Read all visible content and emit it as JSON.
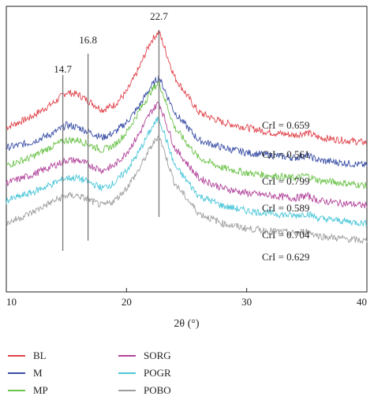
{
  "chart_data": {
    "type": "line",
    "xlabel": "2θ (°)",
    "x_ticks": [
      10,
      20,
      30,
      40
    ],
    "xlim": [
      10,
      40
    ],
    "grid": false,
    "legend_placement": "bottom",
    "peak_markers": [
      {
        "x": 14.7,
        "label": "14.7"
      },
      {
        "x": 16.8,
        "label": "16.8"
      },
      {
        "x": 22.7,
        "label": "22.7"
      }
    ],
    "series": [
      {
        "name": "BL",
        "color": "#e0434b",
        "annotation": "CrI = 0.659",
        "x": [
          10,
          12,
          14,
          15,
          16,
          17,
          18,
          19,
          20,
          21,
          22,
          22.7,
          24,
          26,
          28,
          30,
          32,
          34,
          35,
          36,
          38,
          40
        ],
        "y": [
          0.62,
          0.66,
          0.72,
          0.76,
          0.75,
          0.72,
          0.69,
          0.71,
          0.76,
          0.85,
          0.96,
          1.0,
          0.82,
          0.68,
          0.64,
          0.62,
          0.6,
          0.59,
          0.6,
          0.58,
          0.57,
          0.56
        ]
      },
      {
        "name": "M",
        "color": "#3a4fa5",
        "annotation": "CrI = 0.561",
        "x": [
          10,
          12,
          14,
          15,
          16,
          17,
          18,
          19,
          20,
          21,
          22,
          22.7,
          24,
          26,
          28,
          30,
          32,
          34,
          35,
          36,
          38,
          40
        ],
        "y": [
          0.54,
          0.56,
          0.6,
          0.63,
          0.62,
          0.6,
          0.58,
          0.6,
          0.64,
          0.7,
          0.78,
          0.82,
          0.68,
          0.57,
          0.54,
          0.52,
          0.51,
          0.5,
          0.51,
          0.49,
          0.48,
          0.47
        ]
      },
      {
        "name": "MP",
        "color": "#6cc24a",
        "annotation": "CrI = 0.799",
        "x": [
          10,
          12,
          14,
          15,
          16,
          17,
          18,
          19,
          20,
          21,
          22,
          22.7,
          24,
          26,
          28,
          30,
          32,
          34,
          35,
          36,
          38,
          40
        ],
        "y": [
          0.47,
          0.5,
          0.55,
          0.57,
          0.57,
          0.55,
          0.53,
          0.55,
          0.6,
          0.68,
          0.76,
          0.8,
          0.62,
          0.5,
          0.46,
          0.44,
          0.43,
          0.42,
          0.43,
          0.41,
          0.4,
          0.39
        ]
      },
      {
        "name": "SORG",
        "color": "#b2459b",
        "annotation": "CrI = 0.589",
        "x": [
          10,
          12,
          14,
          15,
          16,
          17,
          18,
          19,
          20,
          21,
          22,
          22.7,
          24,
          26,
          28,
          30,
          32,
          34,
          35,
          36,
          38,
          40
        ],
        "y": [
          0.4,
          0.43,
          0.47,
          0.49,
          0.49,
          0.47,
          0.45,
          0.47,
          0.52,
          0.59,
          0.68,
          0.72,
          0.54,
          0.42,
          0.38,
          0.36,
          0.35,
          0.34,
          0.35,
          0.33,
          0.32,
          0.31
        ]
      },
      {
        "name": "POGR",
        "color": "#4bc6d8",
        "annotation": "CrI = 0.704",
        "x": [
          10,
          12,
          14,
          15,
          16,
          17,
          18,
          19,
          20,
          21,
          22,
          22.7,
          24,
          26,
          28,
          30,
          32,
          34,
          35,
          36,
          38,
          40
        ],
        "y": [
          0.33,
          0.36,
          0.4,
          0.42,
          0.42,
          0.4,
          0.38,
          0.4,
          0.45,
          0.52,
          0.61,
          0.66,
          0.47,
          0.35,
          0.31,
          0.29,
          0.28,
          0.27,
          0.28,
          0.26,
          0.25,
          0.24
        ]
      },
      {
        "name": "POBO",
        "color": "#9e9e9e",
        "annotation": "CrI = 0.629",
        "x": [
          10,
          12,
          14,
          15,
          16,
          17,
          18,
          19,
          20,
          21,
          22,
          22.7,
          24,
          26,
          28,
          30,
          32,
          34,
          35,
          36,
          38,
          40
        ],
        "y": [
          0.24,
          0.28,
          0.33,
          0.35,
          0.35,
          0.33,
          0.31,
          0.33,
          0.38,
          0.45,
          0.54,
          0.59,
          0.4,
          0.28,
          0.24,
          0.22,
          0.21,
          0.2,
          0.21,
          0.19,
          0.18,
          0.17
        ]
      }
    ]
  }
}
